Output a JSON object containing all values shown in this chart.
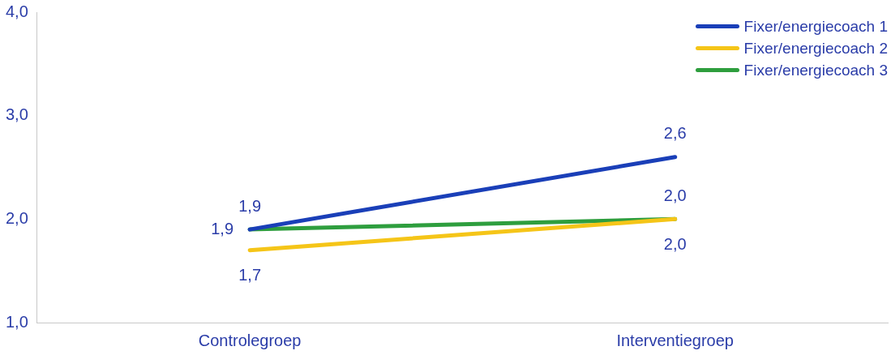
{
  "chart_data": {
    "type": "line",
    "categories": [
      "Controlegroep",
      "Interventiegroep"
    ],
    "series": [
      {
        "name": "Fixer/energiecoach 1",
        "color": "#1a3fb8",
        "values": [
          1.9,
          2.6
        ],
        "value_labels": [
          "1,9",
          "2,6"
        ]
      },
      {
        "name": "Fixer/energiecoach 2",
        "color": "#f5c518",
        "values": [
          1.7,
          2.0
        ],
        "value_labels": [
          "1,7",
          "2,0"
        ]
      },
      {
        "name": "Fixer/energiecoach 3",
        "color": "#2e9e3e",
        "values": [
          1.9,
          2.0
        ],
        "value_labels": [
          "1,9",
          "2,0"
        ]
      }
    ],
    "ylim": [
      1,
      4
    ],
    "yticks": [
      {
        "value": 1,
        "label": "1,0"
      },
      {
        "value": 2,
        "label": "2,0"
      },
      {
        "value": 3,
        "label": "3,0"
      },
      {
        "value": 4,
        "label": "4,0"
      }
    ],
    "grid": false,
    "legend": "top right",
    "marker": "none",
    "line_style": "solid"
  }
}
